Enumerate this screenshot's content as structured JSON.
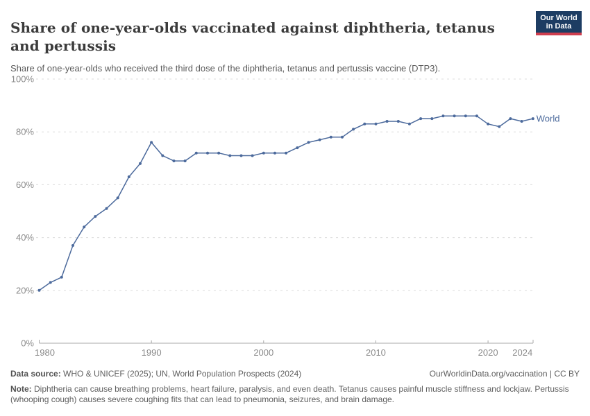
{
  "header": {
    "title": "Share of one-year-olds vaccinated against diphtheria, tetanus and pertussis",
    "subtitle": "Share of one-year-olds who received the third dose of the diphtheria, tetanus and pertussis vaccine (DTP3).",
    "logo": {
      "line1": "Our World",
      "line2": "in Data",
      "bg_color": "#1d3d63",
      "accent_color": "#cf3e4e"
    }
  },
  "chart_data": {
    "type": "line",
    "title": "Share of one-year-olds vaccinated against diphtheria, tetanus and pertussis",
    "xlabel": "",
    "ylabel": "",
    "xlim": [
      1980,
      2024
    ],
    "ylim": [
      0,
      100
    ],
    "grid": "horizontal-dashed",
    "legend_position": "end-of-line-label",
    "x_ticks": [
      {
        "value": 1980,
        "label": "1980"
      },
      {
        "value": 1990,
        "label": "1990"
      },
      {
        "value": 2000,
        "label": "2000"
      },
      {
        "value": 2010,
        "label": "2010"
      },
      {
        "value": 2020,
        "label": "2020"
      },
      {
        "value": 2024,
        "label": "2024"
      }
    ],
    "y_ticks": [
      {
        "value": 0,
        "label": "0%"
      },
      {
        "value": 20,
        "label": "20%"
      },
      {
        "value": 40,
        "label": "40%"
      },
      {
        "value": 60,
        "label": "60%"
      },
      {
        "value": 80,
        "label": "80%"
      },
      {
        "value": 100,
        "label": "100%"
      }
    ],
    "series": [
      {
        "name": "World",
        "color": "#4c6a9c",
        "x": [
          1980,
          1981,
          1982,
          1983,
          1984,
          1985,
          1986,
          1987,
          1988,
          1989,
          1990,
          1991,
          1992,
          1993,
          1994,
          1995,
          1996,
          1997,
          1998,
          1999,
          2000,
          2001,
          2002,
          2003,
          2004,
          2005,
          2006,
          2007,
          2008,
          2009,
          2010,
          2011,
          2012,
          2013,
          2014,
          2015,
          2016,
          2017,
          2018,
          2019,
          2020,
          2021,
          2022,
          2023,
          2024
        ],
        "values": [
          20,
          23,
          25,
          37,
          44,
          48,
          51,
          55,
          63,
          68,
          76,
          71,
          69,
          69,
          72,
          72,
          72,
          71,
          71,
          71,
          72,
          72,
          72,
          74,
          76,
          77,
          78,
          78,
          81,
          83,
          83,
          84,
          84,
          83,
          85,
          85,
          86,
          86,
          86,
          86,
          83,
          82,
          85,
          84,
          85
        ]
      }
    ],
    "style": {
      "grid_color": "#dcdcdc",
      "axis_color": "#a8a8a8",
      "tick_label_color": "#8b8b8b"
    }
  },
  "footer": {
    "datasource_label": "Data source:",
    "datasource_text": " WHO & UNICEF (2025); UN, World Population Prospects (2024)",
    "link_text": "OurWorldinData.org/vaccination | CC BY",
    "note_label": "Note:",
    "note_text": " Diphtheria can cause breathing problems, heart failure, paralysis, and even death. Tetanus causes painful muscle stiffness and lockjaw. Pertussis (whooping cough) causes severe coughing fits that can lead to pneumonia, seizures, and brain damage."
  }
}
